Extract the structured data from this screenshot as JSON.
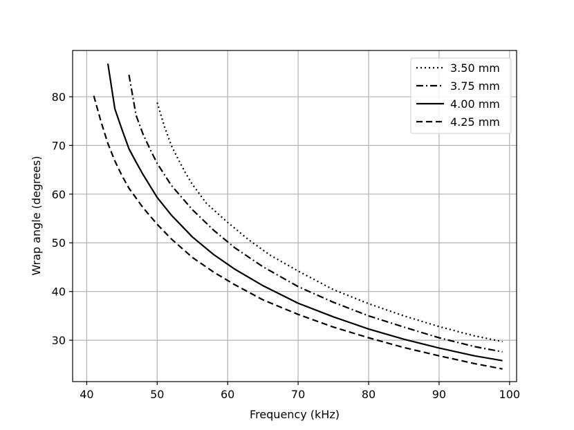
{
  "chart_data": {
    "type": "line",
    "xlabel": "Frequency (kHz)",
    "ylabel": "Wrap angle (degrees)",
    "xlim": [
      38,
      101
    ],
    "ylim": [
      21.5,
      89.5
    ],
    "x_ticks": [
      40,
      50,
      60,
      70,
      80,
      90,
      100
    ],
    "y_ticks": [
      30,
      40,
      50,
      60,
      70,
      80
    ],
    "grid": true,
    "legend_position": "top-right",
    "series": [
      {
        "name": "3.50 mm",
        "line_style": "dotted",
        "x": [
          50,
          51,
          52,
          53,
          54,
          55,
          57,
          60,
          63,
          66,
          70,
          75,
          80,
          85,
          90,
          95,
          99
        ],
        "y": [
          78.8,
          74.0,
          70.0,
          67.1,
          64.4,
          62.0,
          58.1,
          54.2,
          50.6,
          47.5,
          44.2,
          40.4,
          37.5,
          35.0,
          32.8,
          30.9,
          29.7
        ]
      },
      {
        "name": "3.75 mm",
        "line_style": "dashdot",
        "x": [
          46,
          47,
          48,
          49,
          50,
          52,
          55,
          58,
          61,
          65,
          70,
          75,
          80,
          85,
          90,
          95,
          99
        ],
        "y": [
          84.5,
          76.2,
          72.3,
          69.2,
          66.3,
          61.8,
          56.8,
          52.6,
          49.0,
          45.1,
          41.0,
          37.8,
          35.0,
          32.7,
          30.5,
          28.7,
          27.6
        ]
      },
      {
        "name": "4.00 mm",
        "line_style": "solid",
        "x": [
          43,
          44,
          45,
          46,
          47,
          48,
          50,
          52,
          55,
          58,
          61,
          65,
          70,
          75,
          80,
          85,
          90,
          95,
          99
        ],
        "y": [
          86.8,
          77.5,
          73.3,
          69.3,
          66.6,
          64.0,
          59.3,
          55.7,
          51.2,
          47.6,
          44.6,
          41.2,
          37.6,
          34.8,
          32.3,
          30.2,
          28.4,
          26.8,
          25.8
        ]
      },
      {
        "name": "4.25 mm",
        "line_style": "dashed",
        "x": [
          41,
          42,
          43,
          44,
          45,
          46,
          48,
          50,
          52,
          55,
          58,
          61,
          65,
          70,
          75,
          80,
          85,
          90,
          95,
          99
        ],
        "y": [
          80.2,
          75.0,
          70.4,
          66.8,
          63.8,
          61.2,
          57.2,
          53.8,
          50.8,
          47.0,
          44.0,
          41.4,
          38.3,
          35.3,
          32.7,
          30.5,
          28.5,
          26.8,
          25.2,
          24.1
        ]
      }
    ]
  }
}
